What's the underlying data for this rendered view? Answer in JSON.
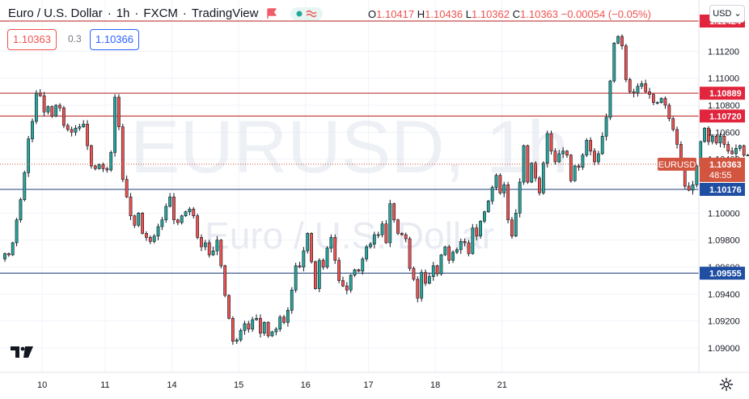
{
  "header": {
    "symbol_desc": "Euro / U.S. Dollar",
    "interval": "1h",
    "exchange": "FXCM",
    "source": "TradingView",
    "sep": "·"
  },
  "ohlc": {
    "o_label": "O",
    "o": "1.10417",
    "h_label": "H",
    "h": "1.10436",
    "l_label": "L",
    "l": "1.10362",
    "c_label": "C",
    "c": "1.10363",
    "change": "−0.00054 (−0.05%)"
  },
  "quote": {
    "sell": "1.10363",
    "spread": "0.3",
    "buy": "1.10366"
  },
  "currency_selector": "USD",
  "watermark": {
    "ticker": "EURUSD, 1h",
    "name": "Euro / U.S. Dollar"
  },
  "price_tag": {
    "symbol": "EURUSD",
    "price": "1.10363",
    "countdown": "48:55"
  },
  "colors": {
    "up": "#26a69a",
    "down": "#ef5350",
    "candle_up_fill": "#ffffff",
    "red_line": "#b71c1c",
    "blue_line": "#1e3f7a",
    "label_red": "#e0253d",
    "label_blue": "#1f4ea3",
    "grid": "#f0f3fa",
    "tag": "#d25540"
  },
  "chart_data": {
    "type": "candlestick",
    "symbol": "EURUSD",
    "interval": "1h",
    "ylim": [
      1.0882,
      1.1158
    ],
    "y_ticks": [
      "1.11200",
      "1.11000",
      "1.10800",
      "1.10600",
      "1.10400",
      "1.10200",
      "1.10000",
      "1.09800",
      "1.09600",
      "1.09400",
      "1.09200",
      "1.09000"
    ],
    "x_ticks": [
      {
        "label": "10",
        "t": 9.5
      },
      {
        "label": "11",
        "t": 25.5
      },
      {
        "label": "14",
        "t": 42.5
      },
      {
        "label": "15",
        "t": 59.5
      },
      {
        "label": "16",
        "t": 76.5
      },
      {
        "label": "17",
        "t": 92.5
      },
      {
        "label": "18",
        "t": 109.5
      },
      {
        "label": "21",
        "t": 126.5
      }
    ],
    "horizontal_levels": [
      {
        "price": 1.11424,
        "label": "1.11424",
        "kind": "red"
      },
      {
        "price": 1.10889,
        "label": "1.10889",
        "kind": "red"
      },
      {
        "price": 1.1072,
        "label": "1.10720",
        "kind": "red"
      },
      {
        "price": 1.10176,
        "label": "1.10176",
        "kind": "blue"
      },
      {
        "price": 1.09555,
        "label": "1.09555",
        "kind": "blue"
      }
    ],
    "last_price": 1.10363,
    "closes": [
      1.097,
      1.0969,
      1.0978,
      1.0995,
      1.101,
      1.103,
      1.1055,
      1.1068,
      1.1089,
      1.1087,
      1.1075,
      1.1079,
      1.1072,
      1.108,
      1.1078,
      1.1065,
      1.1062,
      1.106,
      1.1063,
      1.1064,
      1.1066,
      1.105,
      1.1035,
      1.1033,
      1.1036,
      1.1033,
      1.1032,
      1.1045,
      1.1086,
      1.1064,
      1.1025,
      1.1012,
      1.0998,
      1.0991,
      1.1,
      1.0985,
      1.0982,
      1.0979,
      1.0983,
      1.099,
      1.0995,
      1.1005,
      1.1012,
      1.0995,
      1.0993,
      1.0998,
      1.1001,
      1.1003,
      1.0998,
      1.0982,
      1.0975,
      1.0978,
      1.0969,
      1.0972,
      1.098,
      1.0961,
      1.0939,
      1.0922,
      1.0905,
      1.0906,
      1.0913,
      1.0918,
      1.0914,
      1.0921,
      1.0922,
      1.0911,
      1.0919,
      1.0909,
      1.0912,
      1.0914,
      1.0923,
      1.0919,
      1.0928,
      1.0943,
      1.0961,
      1.096,
      1.0972,
      1.0985,
      1.0964,
      1.0944,
      1.0965,
      1.096,
      1.0974,
      1.0982,
      1.0965,
      1.095,
      1.0946,
      1.0943,
      1.0954,
      1.0958,
      1.0957,
      1.0966,
      1.0975,
      1.0977,
      1.0984,
      1.0984,
      1.0992,
      1.0978,
      1.1007,
      1.0995,
      1.0985,
      1.0984,
      1.0981,
      1.0959,
      1.0951,
      1.0937,
      1.0956,
      1.0948,
      1.0953,
      1.0961,
      1.0955,
      1.0969,
      1.0975,
      1.0965,
      1.0971,
      1.0973,
      1.0979,
      1.0978,
      1.097,
      1.0989,
      1.0983,
      1.0994,
      1.1001,
      1.1009,
      1.1019,
      1.1028,
      1.1015,
      1.1021,
      1.0995,
      1.0983,
      1.1,
      1.1023,
      1.105,
      1.1023,
      1.1037,
      1.1026,
      1.1015,
      1.1037,
      1.1059,
      1.1046,
      1.1038,
      1.1044,
      1.1046,
      1.1043,
      1.1024,
      1.1035,
      1.1034,
      1.1043,
      1.1054,
      1.1046,
      1.1038,
      1.1044,
      1.1057,
      1.1071,
      1.1098,
      1.1126,
      1.1131,
      1.1124,
      1.1099,
      1.109,
      1.1089,
      1.1094,
      1.1096,
      1.109,
      1.1088,
      1.1082,
      1.1082,
      1.1085,
      1.108,
      1.107,
      1.1062,
      1.1051,
      1.1039,
      1.102,
      1.1017,
      1.1021,
      1.1035,
      1.1053,
      1.1063,
      1.1053,
      1.1057,
      1.1052,
      1.1057,
      1.1051,
      1.1046,
      1.1044,
      1.1048,
      1.105,
      1.1043,
      1.1043,
      1.1036
    ]
  }
}
